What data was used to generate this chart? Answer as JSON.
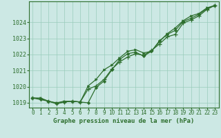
{
  "xlabel": "Graphe pression niveau de la mer (hPa)",
  "bg_color": "#cce8e4",
  "line_color": "#2d6e2d",
  "grid_color": "#99ccbb",
  "xlim": [
    -0.5,
    23.5
  ],
  "ylim": [
    1018.7,
    1025.3
  ],
  "yticks": [
    1019,
    1020,
    1021,
    1022,
    1023,
    1024
  ],
  "xticks": [
    0,
    1,
    2,
    3,
    4,
    5,
    6,
    7,
    8,
    9,
    10,
    11,
    12,
    13,
    14,
    15,
    16,
    17,
    18,
    19,
    20,
    21,
    22,
    23
  ],
  "line1_x": [
    0,
    1,
    2,
    3,
    4,
    5,
    6,
    7,
    8,
    9,
    10,
    11,
    12,
    13,
    14,
    15,
    16,
    17,
    18,
    19,
    20,
    21,
    22,
    23
  ],
  "line1_y": [
    1019.3,
    1019.25,
    1019.1,
    1018.95,
    1019.05,
    1019.1,
    1019.05,
    1019.85,
    1020.05,
    1020.45,
    1021.1,
    1021.55,
    1021.85,
    1022.05,
    1021.95,
    1022.25,
    1022.65,
    1023.1,
    1023.25,
    1023.95,
    1024.15,
    1024.4,
    1024.8,
    1025.05
  ],
  "line2_x": [
    0,
    1,
    2,
    3,
    4,
    5,
    6,
    7,
    8,
    9,
    10,
    11,
    12,
    13,
    14,
    15,
    16,
    17,
    18,
    19,
    20,
    21,
    22,
    23
  ],
  "line2_y": [
    1019.3,
    1019.3,
    1019.1,
    1019.0,
    1019.1,
    1019.1,
    1019.05,
    1020.05,
    1020.45,
    1021.05,
    1021.35,
    1021.8,
    1022.2,
    1022.3,
    1022.1,
    1022.2,
    1022.8,
    1023.3,
    1023.65,
    1024.1,
    1024.4,
    1024.55,
    1024.9,
    1025.05
  ],
  "line3_x": [
    0,
    1,
    2,
    3,
    4,
    5,
    6,
    7,
    8,
    9,
    10,
    11,
    12,
    13,
    14,
    15,
    16,
    17,
    18,
    19,
    20,
    21,
    22,
    23
  ],
  "line3_y": [
    1019.3,
    1019.2,
    1019.1,
    1018.95,
    1019.05,
    1019.1,
    1019.05,
    1019.0,
    1019.95,
    1020.35,
    1021.05,
    1021.7,
    1022.05,
    1022.15,
    1021.9,
    1022.2,
    1022.85,
    1023.25,
    1023.5,
    1024.05,
    1024.25,
    1024.5,
    1024.85,
    1025.05
  ],
  "tick_fontsize": 5.5,
  "xlabel_fontsize": 6.5,
  "marker_size": 3.0,
  "linewidth": 0.9
}
